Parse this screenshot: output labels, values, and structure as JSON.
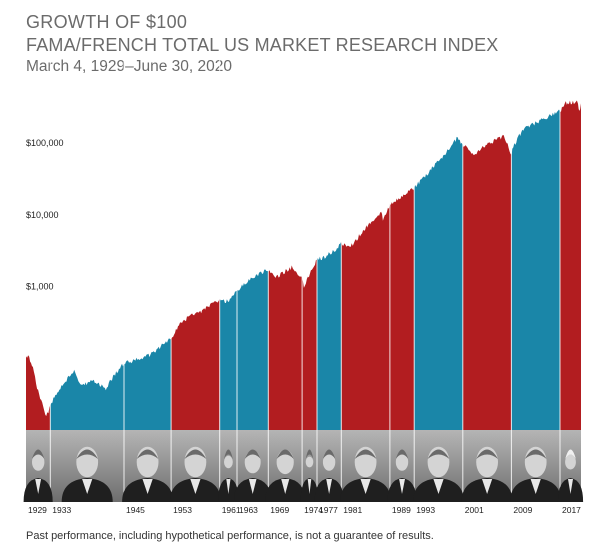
{
  "header": {
    "title": "GROWTH OF $100",
    "subtitle": "FAMA/FRENCH TOTAL US MARKET RESEARCH INDEX",
    "date_range": "March 4, 1929–June 30, 2020"
  },
  "footnote": "Past performance, including hypothetical performance, is not a guarantee of results.",
  "colors": {
    "republican": "#b21d20",
    "democrat": "#1a86a8",
    "portrait_strip": "#8f8f8f"
  },
  "chart_data": {
    "type": "area",
    "title": "GROWTH OF $100",
    "y_scale": "log",
    "ylim": [
      10,
      400000
    ],
    "xlim": [
      1929.17,
      2020.5
    ],
    "y_ticks": [
      {
        "value": 1000,
        "label": "$1,000"
      },
      {
        "value": 10000,
        "label": "$10,000"
      },
      {
        "value": 100000,
        "label": "$100,000"
      }
    ],
    "x_ticks": [
      "1929",
      "1933",
      "1945",
      "1953",
      "1961",
      "1963",
      "1969",
      "1974",
      "1977",
      "1981",
      "1989",
      "1993",
      "2001",
      "2009",
      "2017"
    ],
    "terms": [
      {
        "start": 1929.17,
        "end": 1933.17,
        "party": "R",
        "label": "1929",
        "portrait": "Hoover"
      },
      {
        "start": 1933.17,
        "end": 1945.3,
        "party": "D",
        "label": "1933",
        "portrait": "Roosevelt"
      },
      {
        "start": 1945.3,
        "end": 1953.05,
        "party": "D",
        "label": "1945",
        "portrait": "Truman"
      },
      {
        "start": 1953.05,
        "end": 1961.05,
        "party": "R",
        "label": "1953",
        "portrait": "Eisenhower"
      },
      {
        "start": 1961.05,
        "end": 1963.9,
        "party": "D",
        "label": "1961",
        "portrait": "Kennedy"
      },
      {
        "start": 1963.9,
        "end": 1969.05,
        "party": "D",
        "label": "1963",
        "portrait": "Johnson"
      },
      {
        "start": 1969.05,
        "end": 1974.6,
        "party": "R",
        "label": "1969",
        "portrait": "Nixon"
      },
      {
        "start": 1974.6,
        "end": 1977.05,
        "party": "R",
        "label": "1974",
        "portrait": "Ford"
      },
      {
        "start": 1977.05,
        "end": 1981.05,
        "party": "D",
        "label": "1977",
        "portrait": "Carter"
      },
      {
        "start": 1981.05,
        "end": 1989.05,
        "party": "R",
        "label": "1981",
        "portrait": "Reagan"
      },
      {
        "start": 1989.05,
        "end": 1993.05,
        "party": "R",
        "label": "1989",
        "portrait": "Bush"
      },
      {
        "start": 1993.05,
        "end": 2001.05,
        "party": "D",
        "label": "1993",
        "portrait": "Clinton"
      },
      {
        "start": 2001.05,
        "end": 2009.05,
        "party": "R",
        "label": "2001",
        "portrait": "Bush"
      },
      {
        "start": 2009.05,
        "end": 2017.05,
        "party": "D",
        "label": "2009",
        "portrait": "Obama"
      },
      {
        "start": 2017.05,
        "end": 2020.5,
        "party": "R",
        "label": "2017",
        "portrait": "Trump"
      }
    ],
    "series": [
      {
        "x": [
          1929.17,
          1929.7,
          1930.3,
          1931.0,
          1932.5,
          1933.2,
          1934.0,
          1935.0,
          1936.5,
          1937.1,
          1938.3,
          1940.0,
          1942.3,
          1943.5,
          1945.3,
          1946.3,
          1947.0,
          1949.5,
          1951.0,
          1953.05,
          1954.5,
          1956.0,
          1958.0,
          1960.0,
          1961.05,
          1962.4,
          1963.9,
          1966.0,
          1967.0,
          1968.9,
          1970.4,
          1972.9,
          1974.6,
          1974.9,
          1977.05,
          1978.0,
          1980.0,
          1981.05,
          1982.6,
          1985.0,
          1987.6,
          1987.9,
          1989.05,
          1990.8,
          1993.05,
          1995.0,
          1998.0,
          2000.2,
          2001.05,
          2002.8,
          2005.0,
          2007.8,
          2009.05,
          2009.2,
          2011.0,
          2014.0,
          2017.05,
          2018.0,
          2020.0,
          2020.2,
          2020.5
        ],
        "y": [
          100,
          105,
          72,
          38,
          15,
          22,
          30,
          40,
          60,
          70,
          40,
          50,
          38,
          55,
          85,
          90,
          95,
          110,
          140,
          190,
          300,
          380,
          450,
          580,
          650,
          620,
          880,
          1250,
          1400,
          1700,
          1350,
          1850,
          1300,
          1000,
          2400,
          2500,
          3200,
          4000,
          3600,
          6500,
          11000,
          8500,
          14000,
          17000,
          24000,
          36000,
          70000,
          120000,
          95000,
          70000,
          95000,
          125000,
          70000,
          85000,
          160000,
          210000,
          280000,
          360000,
          380000,
          270000,
          360000
        ]
      }
    ]
  }
}
